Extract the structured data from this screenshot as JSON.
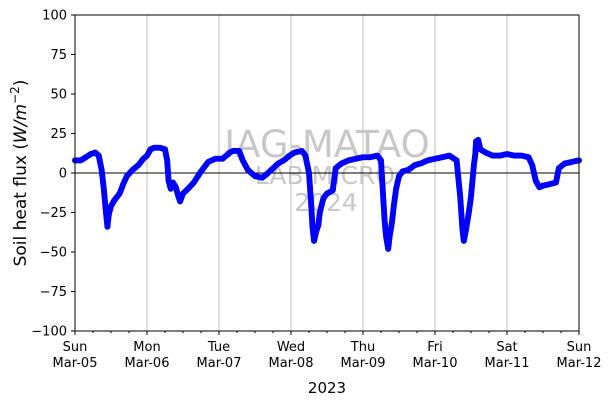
{
  "chart_data": {
    "type": "scatter",
    "xlabel": "2023",
    "ylabel_main": "Soil heat flux (",
    "ylabel_math": "W/m",
    "ylabel_exp": "−2",
    "ylabel_close": ")",
    "ylim": [
      -100,
      100
    ],
    "xlim_days": [
      0,
      7
    ],
    "grid": "vertical at daily ticks",
    "y_ticks": [
      "−100",
      "−75",
      "−50",
      "−25",
      "0",
      "25",
      "50",
      "75",
      "100"
    ],
    "y_tick_values": [
      -100,
      -75,
      -50,
      -25,
      0,
      25,
      50,
      75,
      100
    ],
    "x_ticks": [
      {
        "day": "Sun",
        "date": "Mar-05"
      },
      {
        "day": "Mon",
        "date": "Mar-06"
      },
      {
        "day": "Tue",
        "date": "Mar-07"
      },
      {
        "day": "Wed",
        "date": "Mar-08"
      },
      {
        "day": "Thu",
        "date": "Mar-09"
      },
      {
        "day": "Fri",
        "date": "Mar-10"
      },
      {
        "day": "Sat",
        "date": "Mar-11"
      },
      {
        "day": "Sun",
        "date": "Mar-12"
      }
    ],
    "reference_line_y": 0,
    "series_color": "#0000ff",
    "watermark": [
      "IAG-MATAO",
      "LAB MICRO",
      "2024"
    ],
    "series": [
      {
        "color": "#0000ff",
        "points": [
          [
            0.0,
            8
          ],
          [
            0.08,
            8
          ],
          [
            0.15,
            10
          ],
          [
            0.22,
            12
          ],
          [
            0.28,
            13
          ],
          [
            0.33,
            11
          ],
          [
            0.37,
            2
          ],
          [
            0.4,
            -10
          ],
          [
            0.43,
            -25
          ],
          [
            0.45,
            -34
          ],
          [
            0.47,
            -26
          ],
          [
            0.5,
            -21
          ],
          [
            0.55,
            -17
          ],
          [
            0.62,
            -13
          ],
          [
            0.67,
            -7
          ],
          [
            0.72,
            -2
          ],
          [
            0.8,
            2
          ],
          [
            0.88,
            5
          ],
          [
            0.95,
            9
          ],
          [
            1.0,
            11
          ],
          [
            1.05,
            15
          ],
          [
            1.1,
            16
          ],
          [
            1.18,
            16
          ],
          [
            1.25,
            15
          ],
          [
            1.28,
            8
          ],
          [
            1.3,
            -5
          ],
          [
            1.33,
            -10
          ],
          [
            1.36,
            -6
          ],
          [
            1.4,
            -9
          ],
          [
            1.43,
            -14
          ],
          [
            1.46,
            -18
          ],
          [
            1.5,
            -13
          ],
          [
            1.57,
            -10
          ],
          [
            1.65,
            -6
          ],
          [
            1.75,
            1
          ],
          [
            1.85,
            7
          ],
          [
            1.95,
            9
          ],
          [
            2.05,
            9
          ],
          [
            2.1,
            11
          ],
          [
            2.15,
            13
          ],
          [
            2.2,
            14
          ],
          [
            2.28,
            14
          ],
          [
            2.33,
            8
          ],
          [
            2.4,
            2
          ],
          [
            2.5,
            -2
          ],
          [
            2.6,
            -3
          ],
          [
            2.68,
            0
          ],
          [
            2.75,
            3
          ],
          [
            2.82,
            6
          ],
          [
            2.9,
            8
          ],
          [
            2.98,
            11
          ],
          [
            3.05,
            13
          ],
          [
            3.15,
            14
          ],
          [
            3.2,
            11
          ],
          [
            3.25,
            0
          ],
          [
            3.28,
            -20
          ],
          [
            3.3,
            -35
          ],
          [
            3.32,
            -43
          ],
          [
            3.35,
            -37
          ],
          [
            3.38,
            -33
          ],
          [
            3.4,
            -25
          ],
          [
            3.45,
            -16
          ],
          [
            3.5,
            -13
          ],
          [
            3.58,
            -11
          ],
          [
            3.62,
            3
          ],
          [
            3.7,
            6
          ],
          [
            3.8,
            8
          ],
          [
            3.9,
            9
          ],
          [
            4.0,
            10
          ],
          [
            4.1,
            10
          ],
          [
            4.2,
            11
          ],
          [
            4.25,
            8
          ],
          [
            4.28,
            -15
          ],
          [
            4.3,
            -30
          ],
          [
            4.32,
            -40
          ],
          [
            4.35,
            -48
          ],
          [
            4.37,
            -40
          ],
          [
            4.4,
            -32
          ],
          [
            4.43,
            -20
          ],
          [
            4.46,
            -10
          ],
          [
            4.5,
            -2
          ],
          [
            4.55,
            1
          ],
          [
            4.63,
            2
          ],
          [
            4.72,
            5
          ],
          [
            4.8,
            6
          ],
          [
            4.9,
            8
          ],
          [
            5.0,
            9
          ],
          [
            5.1,
            10
          ],
          [
            5.2,
            11
          ],
          [
            5.3,
            8
          ],
          [
            5.35,
            -15
          ],
          [
            5.38,
            -35
          ],
          [
            5.4,
            -43
          ],
          [
            5.43,
            -36
          ],
          [
            5.47,
            -25
          ],
          [
            5.5,
            -15
          ],
          [
            5.52,
            -5
          ],
          [
            5.54,
            5
          ],
          [
            5.56,
            12
          ],
          [
            5.57,
            20
          ],
          [
            5.6,
            21
          ],
          [
            5.63,
            15
          ],
          [
            5.7,
            13
          ],
          [
            5.8,
            11
          ],
          [
            5.9,
            11
          ],
          [
            6.0,
            12
          ],
          [
            6.1,
            11
          ],
          [
            6.2,
            11
          ],
          [
            6.3,
            10
          ],
          [
            6.35,
            5
          ],
          [
            6.4,
            -5
          ],
          [
            6.45,
            -9
          ],
          [
            6.5,
            -8
          ],
          [
            6.6,
            -7
          ],
          [
            6.68,
            -6
          ],
          [
            6.72,
            3
          ],
          [
            6.8,
            6
          ],
          [
            6.9,
            7
          ],
          [
            7.0,
            8
          ]
        ]
      }
    ]
  }
}
